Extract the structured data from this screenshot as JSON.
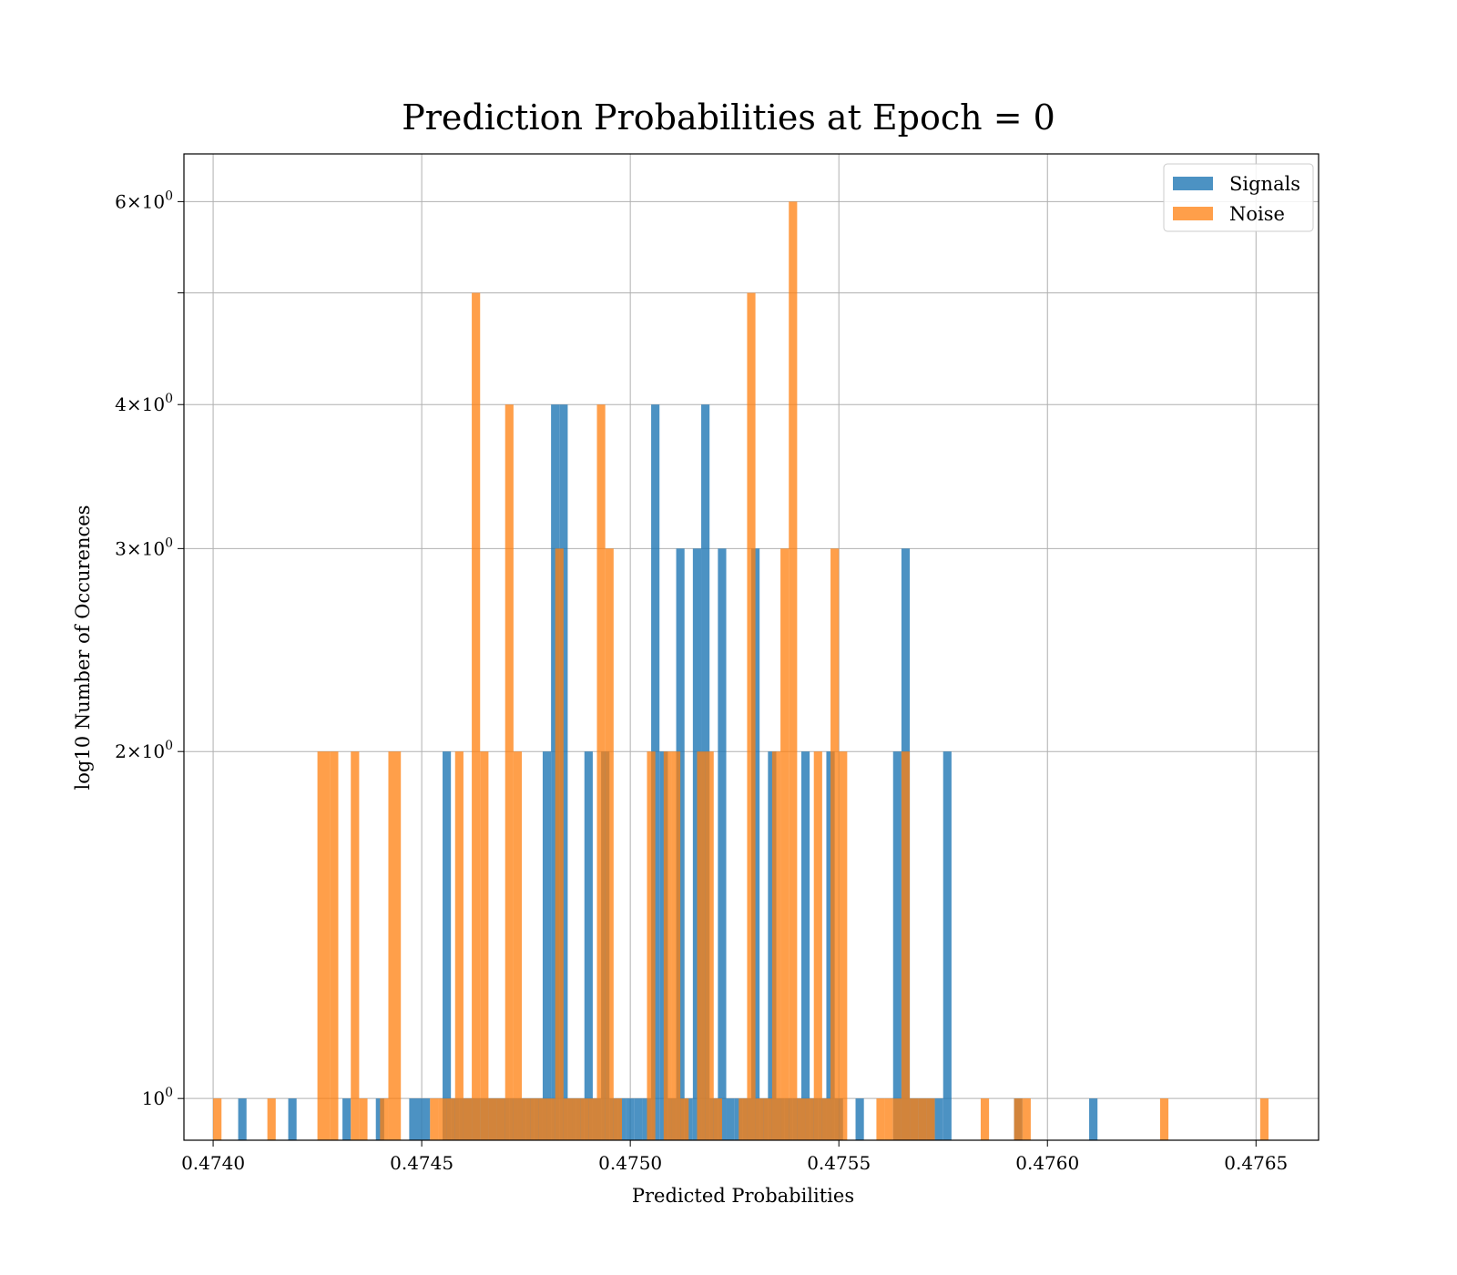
{
  "chart_data": {
    "type": "bar",
    "title": "Prediction Probabilities at Epoch = 0",
    "xlabel": "Predicted Probabilities",
    "ylabel": "log10 Number of Occurences",
    "xlim": [
      0.47393,
      0.47665
    ],
    "ylim": [
      0.92,
      6.6
    ],
    "yscale": "log",
    "grid": true,
    "legend_position": "top-right",
    "x_ticks": [
      {
        "value": 0.474,
        "label": "0.4740"
      },
      {
        "value": 0.4745,
        "label": "0.4745"
      },
      {
        "value": 0.475,
        "label": "0.4750"
      },
      {
        "value": 0.4755,
        "label": "0.4755"
      },
      {
        "value": 0.476,
        "label": "0.4760"
      },
      {
        "value": 0.4765,
        "label": "0.4765"
      }
    ],
    "y_ticks": [
      {
        "value": 1,
        "label": "10^0",
        "base": "10",
        "exp": "0"
      },
      {
        "value": 2,
        "label": "2×10^0",
        "base": "2×10",
        "exp": "0"
      },
      {
        "value": 3,
        "label": "3×10^0",
        "base": "3×10",
        "exp": "0"
      },
      {
        "value": 4,
        "label": "4×10^0",
        "base": "4×10",
        "exp": "0"
      },
      {
        "value": 5,
        "label": "",
        "base": "",
        "exp": ""
      },
      {
        "value": 6,
        "label": "6×10^0",
        "base": "6×10",
        "exp": "0"
      }
    ],
    "series": [
      {
        "name": "Signals",
        "color": "#1f77b4",
        "opacity": 0.8,
        "bins": [
          [
            0.47406,
            0.47408,
            1
          ],
          [
            0.47418,
            0.4742,
            1
          ],
          [
            0.47431,
            0.47433,
            1
          ],
          [
            0.47439,
            0.47441,
            1
          ],
          [
            0.47447,
            0.4745,
            1
          ],
          [
            0.4745,
            0.47452,
            1
          ],
          [
            0.47455,
            0.47457,
            2
          ],
          [
            0.47457,
            0.47459,
            1
          ],
          [
            0.47459,
            0.47462,
            1
          ],
          [
            0.47462,
            0.47464,
            1
          ],
          [
            0.47464,
            0.47466,
            1
          ],
          [
            0.47466,
            0.47468,
            1
          ],
          [
            0.47468,
            0.47471,
            1
          ],
          [
            0.47471,
            0.47473,
            1
          ],
          [
            0.47473,
            0.47475,
            1
          ],
          [
            0.47475,
            0.47477,
            1
          ],
          [
            0.47477,
            0.47479,
            1
          ],
          [
            0.47479,
            0.47481,
            2
          ],
          [
            0.47481,
            0.47483,
            4
          ],
          [
            0.47483,
            0.47485,
            4
          ],
          [
            0.47485,
            0.47487,
            1
          ],
          [
            0.47487,
            0.47489,
            1
          ],
          [
            0.47489,
            0.47491,
            2
          ],
          [
            0.47491,
            0.47493,
            1
          ],
          [
            0.47493,
            0.47495,
            2
          ],
          [
            0.47495,
            0.47497,
            1
          ],
          [
            0.47497,
            0.47499,
            1
          ],
          [
            0.47499,
            0.47501,
            1
          ],
          [
            0.47501,
            0.47503,
            1
          ],
          [
            0.47503,
            0.47505,
            1
          ],
          [
            0.47505,
            0.47507,
            4
          ],
          [
            0.47507,
            0.47509,
            2
          ],
          [
            0.47509,
            0.47511,
            1
          ],
          [
            0.47511,
            0.47513,
            3
          ],
          [
            0.47513,
            0.47515,
            1
          ],
          [
            0.47515,
            0.47517,
            3
          ],
          [
            0.47517,
            0.47519,
            4
          ],
          [
            0.47519,
            0.47521,
            1
          ],
          [
            0.47521,
            0.47523,
            3
          ],
          [
            0.47523,
            0.47525,
            1
          ],
          [
            0.47525,
            0.47527,
            1
          ],
          [
            0.47527,
            0.47529,
            1
          ],
          [
            0.47529,
            0.47531,
            3
          ],
          [
            0.47531,
            0.47533,
            1
          ],
          [
            0.47533,
            0.47535,
            2
          ],
          [
            0.47535,
            0.47537,
            1
          ],
          [
            0.47537,
            0.47539,
            1
          ],
          [
            0.47539,
            0.47541,
            1
          ],
          [
            0.47541,
            0.47543,
            2
          ],
          [
            0.47543,
            0.47545,
            1
          ],
          [
            0.47545,
            0.47547,
            1
          ],
          [
            0.47547,
            0.47549,
            2
          ],
          [
            0.47549,
            0.47551,
            1
          ],
          [
            0.47554,
            0.47556,
            1
          ],
          [
            0.47563,
            0.47565,
            2
          ],
          [
            0.47565,
            0.47567,
            3
          ],
          [
            0.47567,
            0.47569,
            1
          ],
          [
            0.47569,
            0.47571,
            1
          ],
          [
            0.47571,
            0.47573,
            1
          ],
          [
            0.47573,
            0.47575,
            1
          ],
          [
            0.47575,
            0.47577,
            2
          ],
          [
            0.47592,
            0.47594,
            1
          ],
          [
            0.4761,
            0.47612,
            1
          ]
        ]
      },
      {
        "name": "Noise",
        "color": "#ff7f0e",
        "opacity": 0.75,
        "bins": [
          [
            0.474,
            0.47402,
            1
          ],
          [
            0.47413,
            0.47415,
            1
          ],
          [
            0.47425,
            0.47428,
            2
          ],
          [
            0.47428,
            0.4743,
            2
          ],
          [
            0.47433,
            0.47435,
            2
          ],
          [
            0.47435,
            0.47437,
            1
          ],
          [
            0.4744,
            0.47442,
            1
          ],
          [
            0.47442,
            0.47445,
            2
          ],
          [
            0.47452,
            0.47454,
            1
          ],
          [
            0.47454,
            0.47456,
            1
          ],
          [
            0.47456,
            0.47458,
            1
          ],
          [
            0.47458,
            0.4746,
            2
          ],
          [
            0.4746,
            0.47462,
            1
          ],
          [
            0.47462,
            0.47464,
            5
          ],
          [
            0.47464,
            0.47466,
            2
          ],
          [
            0.47466,
            0.47468,
            1
          ],
          [
            0.47468,
            0.4747,
            1
          ],
          [
            0.4747,
            0.47472,
            4
          ],
          [
            0.47472,
            0.47474,
            2
          ],
          [
            0.47474,
            0.47476,
            1
          ],
          [
            0.47476,
            0.47478,
            1
          ],
          [
            0.47478,
            0.4748,
            1
          ],
          [
            0.4748,
            0.47482,
            1
          ],
          [
            0.47482,
            0.47484,
            3
          ],
          [
            0.47484,
            0.47486,
            1
          ],
          [
            0.47486,
            0.47488,
            1
          ],
          [
            0.47488,
            0.4749,
            1
          ],
          [
            0.4749,
            0.47492,
            1
          ],
          [
            0.47492,
            0.47494,
            4
          ],
          [
            0.47494,
            0.47496,
            3
          ],
          [
            0.47496,
            0.47498,
            1
          ],
          [
            0.47504,
            0.47506,
            2
          ],
          [
            0.47508,
            0.4751,
            2
          ],
          [
            0.4751,
            0.47512,
            2
          ],
          [
            0.47512,
            0.47514,
            1
          ],
          [
            0.47516,
            0.47518,
            2
          ],
          [
            0.47518,
            0.4752,
            2
          ],
          [
            0.4752,
            0.47522,
            1
          ],
          [
            0.47526,
            0.47528,
            1
          ],
          [
            0.47528,
            0.4753,
            5
          ],
          [
            0.4753,
            0.47532,
            1
          ],
          [
            0.47532,
            0.47534,
            1
          ],
          [
            0.47534,
            0.47536,
            2
          ],
          [
            0.47536,
            0.47538,
            3
          ],
          [
            0.47538,
            0.4754,
            6
          ],
          [
            0.4754,
            0.47542,
            1
          ],
          [
            0.47542,
            0.47544,
            1
          ],
          [
            0.47544,
            0.47546,
            2
          ],
          [
            0.47546,
            0.47548,
            1
          ],
          [
            0.47548,
            0.4755,
            3
          ],
          [
            0.4755,
            0.47552,
            2
          ],
          [
            0.47559,
            0.47561,
            1
          ],
          [
            0.47561,
            0.47563,
            1
          ],
          [
            0.47563,
            0.47565,
            1
          ],
          [
            0.47565,
            0.47567,
            2
          ],
          [
            0.47567,
            0.47569,
            1
          ],
          [
            0.47569,
            0.47571,
            1
          ],
          [
            0.47571,
            0.47573,
            1
          ],
          [
            0.47584,
            0.47586,
            1
          ],
          [
            0.47592,
            0.47594,
            1
          ],
          [
            0.47594,
            0.47596,
            1
          ],
          [
            0.47627,
            0.47629,
            1
          ],
          [
            0.47651,
            0.47653,
            1
          ]
        ]
      }
    ]
  }
}
